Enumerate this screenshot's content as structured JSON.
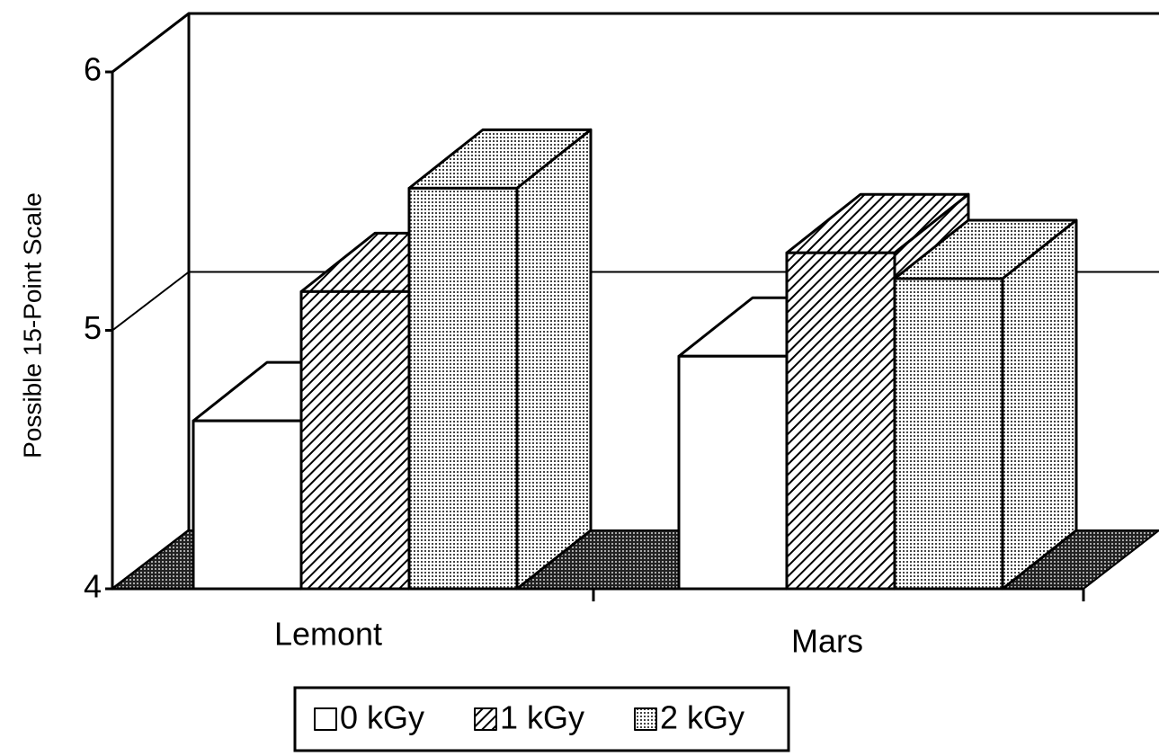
{
  "chart_data": {
    "type": "bar3d",
    "y_label": "Possible 15-Point Scale",
    "categories": [
      "Lemont",
      "Mars"
    ],
    "series": [
      {
        "name": "0 kGy",
        "color": "#ffffff",
        "pattern": "none",
        "values": [
          4.65,
          4.9
        ]
      },
      {
        "name": "1 kGy",
        "color": "#000000",
        "pattern": "hatch",
        "values": [
          5.15,
          5.3
        ]
      },
      {
        "name": "2 kGy",
        "color": "#000000",
        "pattern": "dots",
        "values": [
          5.55,
          5.2
        ]
      }
    ],
    "ylim": [
      4,
      6
    ],
    "yticks": [
      4,
      5,
      6
    ],
    "grid": true,
    "legend": "bottom"
  }
}
